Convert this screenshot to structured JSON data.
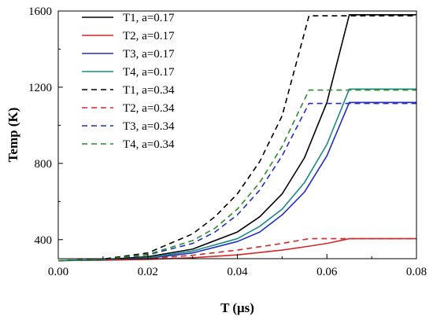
{
  "chart_data": {
    "type": "line",
    "xlabel": "T (μs)",
    "ylabel": "Temp (K)",
    "xlim": [
      0,
      0.08
    ],
    "ylim": [
      300,
      1600
    ],
    "xticks": [
      0.0,
      0.02,
      0.04,
      0.06,
      0.08
    ],
    "xtick_labels": [
      "0.00",
      "0.02",
      "0.04",
      "0.06",
      "0.08"
    ],
    "yticks": [
      400,
      800,
      1200,
      1600
    ],
    "ytick_labels": [
      "400",
      "800",
      "1200",
      "1600"
    ],
    "grid": false,
    "legend_position": "top-left",
    "series": [
      {
        "name": "T1, a=0.17",
        "color": "#000000",
        "dash": "solid",
        "x": [
          0,
          0.01,
          0.02,
          0.03,
          0.04,
          0.045,
          0.05,
          0.055,
          0.06,
          0.065,
          0.08
        ],
        "y": [
          290,
          295,
          310,
          350,
          440,
          520,
          640,
          830,
          1120,
          1580,
          1580
        ]
      },
      {
        "name": "T2, a=0.17",
        "color": "#d62728",
        "dash": "solid",
        "x": [
          0,
          0.01,
          0.02,
          0.03,
          0.04,
          0.05,
          0.055,
          0.06,
          0.065,
          0.08
        ],
        "y": [
          290,
          292,
          296,
          305,
          320,
          345,
          362,
          380,
          405,
          405
        ]
      },
      {
        "name": "T3, a=0.17",
        "color": "#1f2fbf",
        "dash": "solid",
        "x": [
          0,
          0.01,
          0.02,
          0.03,
          0.04,
          0.045,
          0.05,
          0.055,
          0.06,
          0.065,
          0.08
        ],
        "y": [
          290,
          293,
          302,
          330,
          390,
          440,
          530,
          650,
          840,
          1120,
          1120
        ]
      },
      {
        "name": "T4, a=0.17",
        "color": "#1a8a84",
        "dash": "solid",
        "x": [
          0,
          0.01,
          0.02,
          0.03,
          0.04,
          0.045,
          0.05,
          0.055,
          0.06,
          0.065,
          0.08
        ],
        "y": [
          290,
          294,
          305,
          340,
          405,
          470,
          560,
          700,
          900,
          1190,
          1190
        ]
      },
      {
        "name": "T1, a=0.34",
        "color": "#000000",
        "dash": "dashed",
        "x": [
          0,
          0.01,
          0.02,
          0.03,
          0.035,
          0.04,
          0.045,
          0.05,
          0.056,
          0.08
        ],
        "y": [
          290,
          298,
          330,
          430,
          520,
          640,
          810,
          1050,
          1575,
          1575
        ]
      },
      {
        "name": "T2, a=0.34",
        "color": "#d62728",
        "dash": "dashed",
        "x": [
          0,
          0.01,
          0.02,
          0.03,
          0.04,
          0.05,
          0.056,
          0.08
        ],
        "y": [
          290,
          292,
          300,
          318,
          345,
          380,
          405,
          405
        ]
      },
      {
        "name": "T3, a=0.34",
        "color": "#1f2fbf",
        "dash": "dashed",
        "x": [
          0,
          0.01,
          0.02,
          0.03,
          0.035,
          0.04,
          0.045,
          0.05,
          0.056,
          0.08
        ],
        "y": [
          290,
          295,
          320,
          380,
          440,
          530,
          660,
          840,
          1115,
          1115
        ]
      },
      {
        "name": "T4, a=0.34",
        "color": "#2a8a2a",
        "dash": "dashed",
        "x": [
          0,
          0.01,
          0.02,
          0.03,
          0.035,
          0.04,
          0.045,
          0.05,
          0.056,
          0.08
        ],
        "y": [
          290,
          296,
          322,
          395,
          460,
          560,
          700,
          890,
          1185,
          1185
        ]
      }
    ]
  }
}
